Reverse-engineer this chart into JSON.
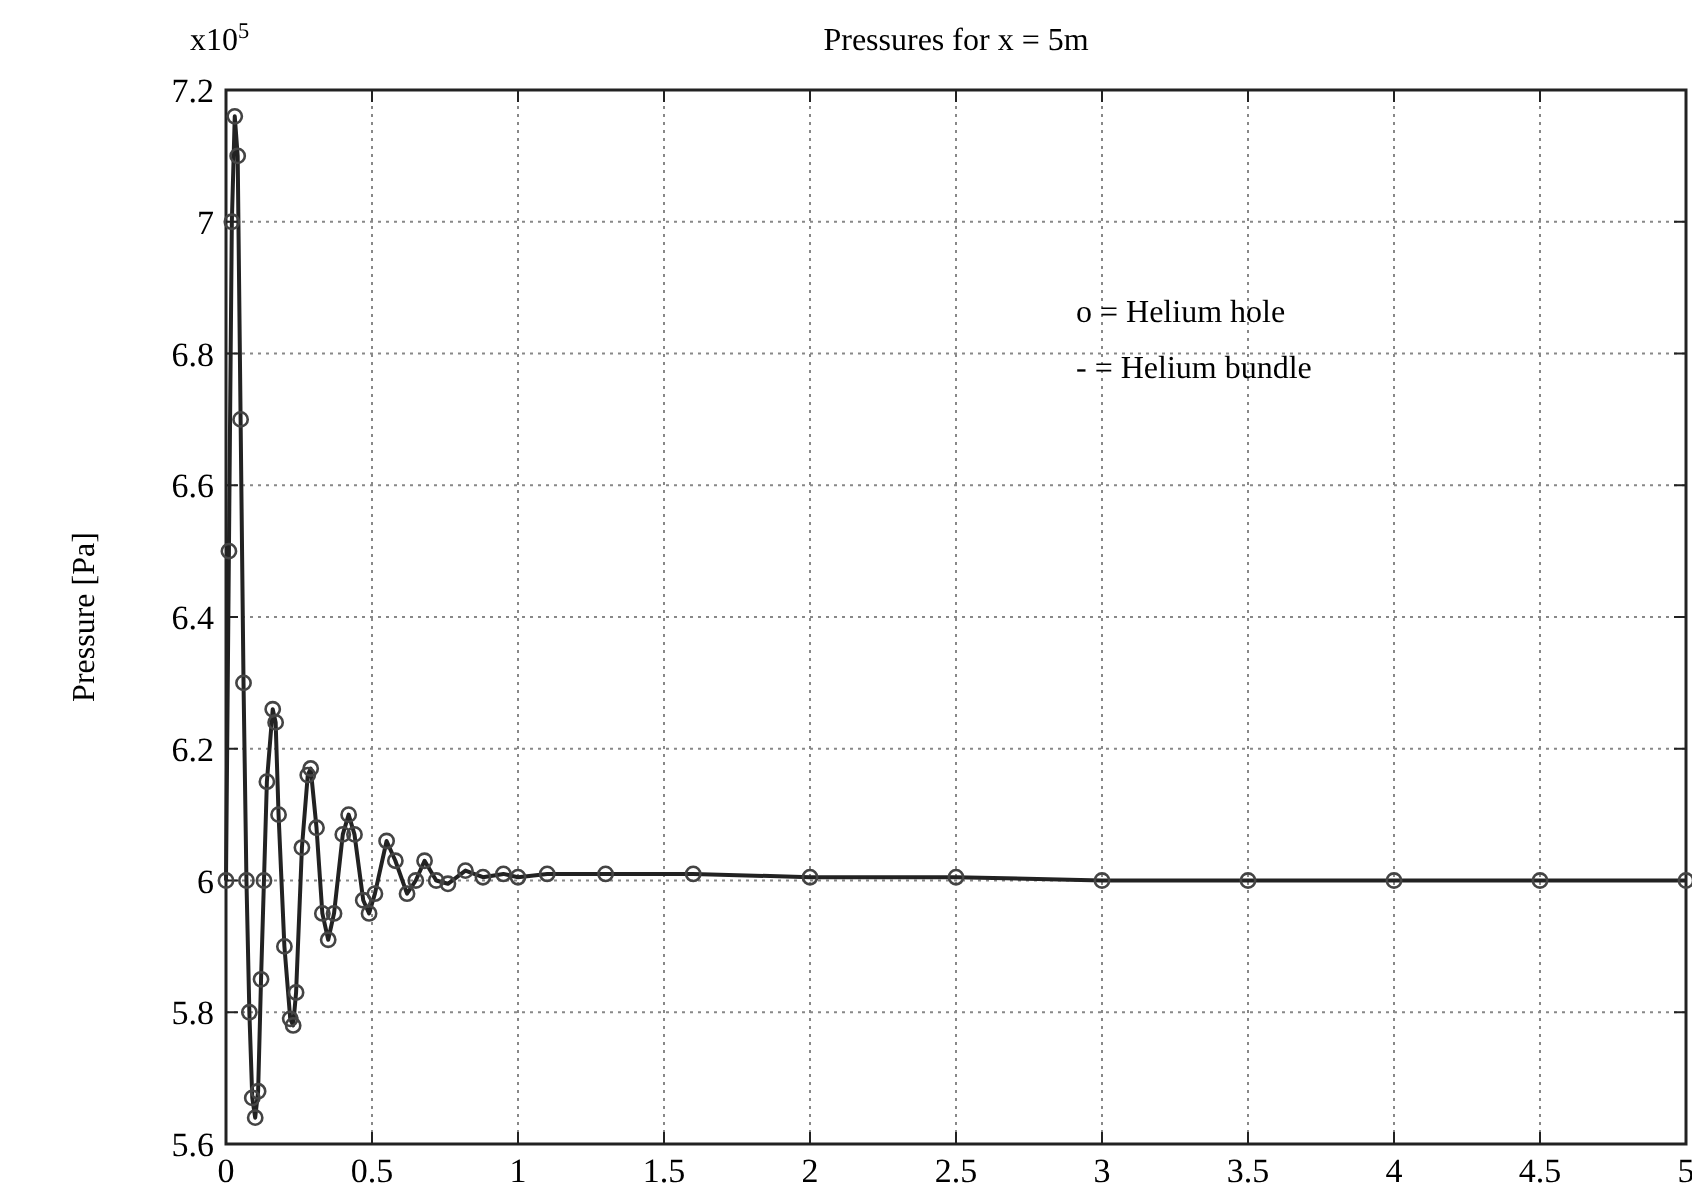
{
  "chart_data": {
    "type": "line",
    "title": "Pressures for x = 5m",
    "ylabel": "Pressure [Pa]",
    "annotations": [
      "x10$^{5}$",
      "o = Helium hole",
      "- = Helium bundle"
    ],
    "xlim": [
      0,
      5
    ],
    "xticks": [
      0,
      0.5,
      1,
      1.5,
      2,
      2.5,
      3,
      3.5,
      4,
      4.5,
      5
    ],
    "ylim": [
      5.6,
      7.2
    ],
    "yticks": [
      5.6,
      5.8,
      6,
      6.2,
      6.4,
      6.6,
      6.8,
      7,
      7.2
    ],
    "grid": true,
    "x": [
      0,
      0.01,
      0.02,
      0.03,
      0.04,
      0.05,
      0.06,
      0.07,
      0.08,
      0.09,
      0.1,
      0.11,
      0.12,
      0.13,
      0.14,
      0.16,
      0.17,
      0.18,
      0.2,
      0.22,
      0.23,
      0.24,
      0.26,
      0.28,
      0.29,
      0.31,
      0.33,
      0.35,
      0.37,
      0.4,
      0.42,
      0.44,
      0.47,
      0.49,
      0.51,
      0.55,
      0.58,
      0.62,
      0.65,
      0.68,
      0.72,
      0.76,
      0.82,
      0.88,
      0.95,
      1,
      1.1,
      1.3,
      1.6,
      2,
      2.5,
      3,
      3.5,
      4,
      4.5,
      5
    ],
    "series": [
      {
        "line_style": "solid",
        "color": "#222222",
        "values": [
          6.0,
          6.5,
          7.0,
          7.16,
          7.1,
          6.7,
          6.3,
          6.0,
          5.8,
          5.67,
          5.64,
          5.68,
          5.85,
          6.0,
          6.15,
          6.26,
          6.24,
          6.1,
          5.9,
          5.79,
          5.78,
          5.83,
          6.05,
          6.16,
          6.17,
          6.08,
          5.95,
          5.91,
          5.95,
          6.07,
          6.1,
          6.07,
          5.97,
          5.95,
          5.98,
          6.06,
          6.03,
          5.98,
          6.0,
          6.03,
          6.0,
          5.995,
          6.015,
          6.005,
          6.01,
          6.005,
          6.01,
          6.01,
          6.01,
          6.005,
          6.005,
          6.0,
          6.0,
          6.0,
          6.0,
          6.0
        ]
      },
      {
        "type": "scatter",
        "marker": "circle",
        "color": "#444444",
        "values": [
          6.0,
          6.5,
          7.0,
          7.16,
          7.1,
          6.7,
          6.3,
          6.0,
          5.8,
          5.67,
          5.64,
          5.68,
          5.85,
          6.0,
          6.15,
          6.26,
          6.24,
          6.1,
          5.9,
          5.79,
          5.78,
          5.83,
          6.05,
          6.16,
          6.17,
          6.08,
          5.95,
          5.91,
          5.95,
          6.07,
          6.1,
          6.07,
          5.97,
          5.95,
          5.98,
          6.06,
          6.03,
          5.98,
          6.0,
          6.03,
          6.0,
          5.995,
          6.015,
          6.005,
          6.01,
          6.005,
          6.01,
          6.01,
          6.01,
          6.005,
          6.005,
          6.0,
          6.0,
          6.0,
          6.0,
          6.0
        ]
      }
    ]
  }
}
